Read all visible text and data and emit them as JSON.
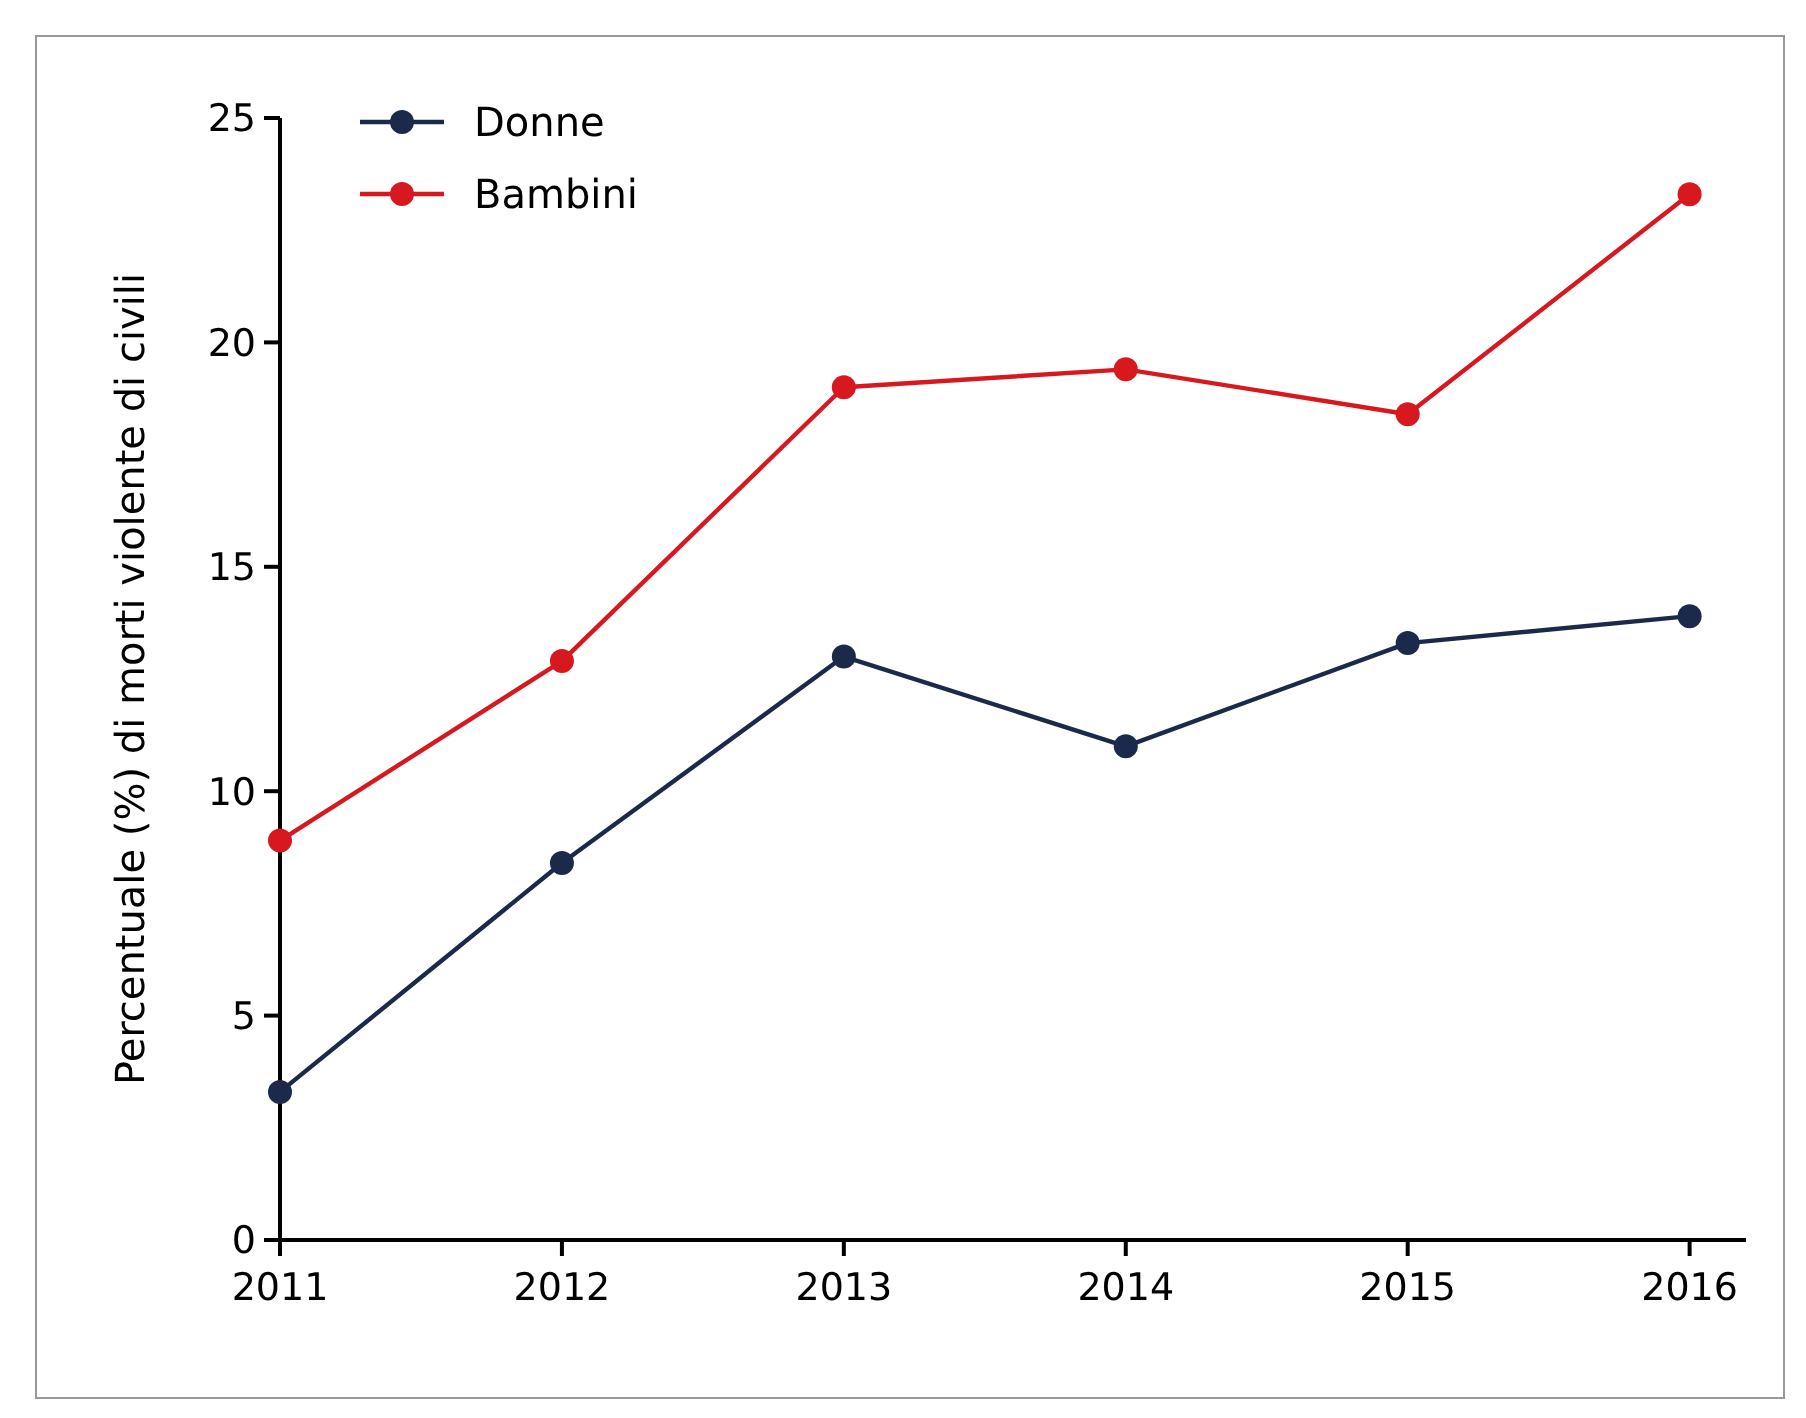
{
  "chart_data": {
    "type": "line",
    "ylabel": "Percentuale (%) di morti violente di civili",
    "x": [
      2011,
      2012,
      2013,
      2014,
      2015,
      2016
    ],
    "series": [
      {
        "name": "Donne",
        "color": "#1b2a4a",
        "values": [
          3.3,
          8.4,
          13.0,
          11.0,
          13.3,
          13.9
        ]
      },
      {
        "name": "Bambini",
        "color": "#d7191f",
        "values": [
          8.9,
          12.9,
          19.0,
          19.4,
          18.4,
          23.3
        ]
      }
    ],
    "xlim": [
      2011,
      2016.2
    ],
    "xticks": [
      2011,
      2012,
      2013,
      2014,
      2015,
      2016
    ],
    "ylim": [
      0,
      25
    ],
    "yticks": [
      0,
      5,
      10,
      15,
      20,
      25
    ],
    "grid": false,
    "legend": "top left",
    "marker": "circle",
    "line_style": "solid"
  }
}
